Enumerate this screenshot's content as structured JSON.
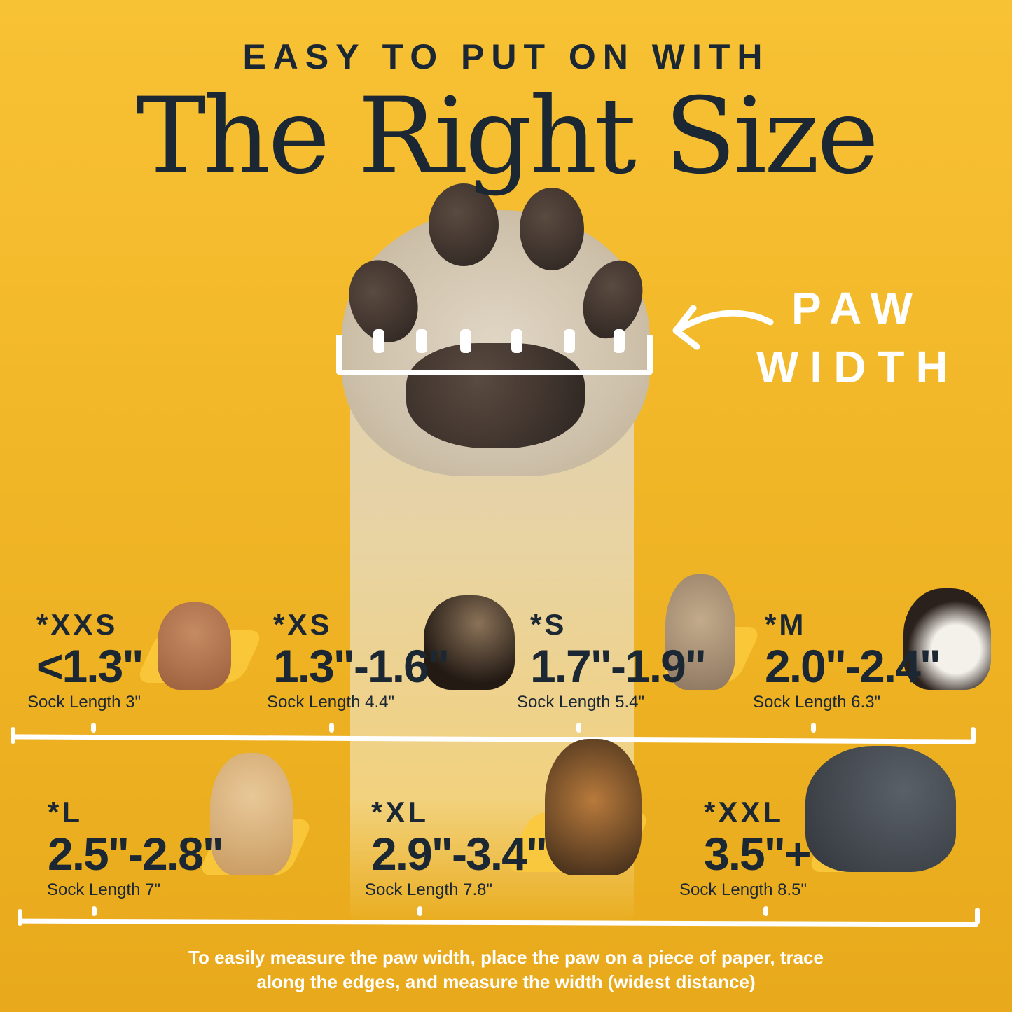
{
  "header": {
    "subtitle": "EASY TO PUT ON WITH",
    "title": "The Right Size"
  },
  "callout": {
    "line1": "PAW",
    "line2": "WIDTH",
    "icon": "curved-arrow-left-icon"
  },
  "sizes": [
    {
      "size": "*XXS",
      "range": "<1.3\"",
      "sock": "Sock Length 3\"",
      "dog": "chihuahua"
    },
    {
      "size": "*XS",
      "range": "1.3\"-1.6\"",
      "sock": "Sock Length 4.4\"",
      "dog": "yorkshire-terrier"
    },
    {
      "size": "*S",
      "range": "1.7\"-1.9\"",
      "sock": "Sock Length 5.4\"",
      "dog": "french-bulldog"
    },
    {
      "size": "*M",
      "range": "2.0\"-2.4\"",
      "sock": "Sock Length 6.3\"",
      "dog": "bernese-mountain-dog"
    },
    {
      "size": "*L",
      "range": "2.5\"-2.8\"",
      "sock": "Sock Length 7\"",
      "dog": "golden-retriever"
    },
    {
      "size": "*XL",
      "range": "2.9\"-3.4\"",
      "sock": "Sock Length 7.8\"",
      "dog": "german-shepherd"
    },
    {
      "size": "*XXL",
      "range": "3.5\"+",
      "sock": "Sock Length 8.5\"",
      "dog": "great-dane"
    }
  ],
  "footer": {
    "line1": "To easily measure the paw width, place the paw on a piece of paper, trace",
    "line2": "along the edges, and measure the width (widest distance)"
  },
  "colors": {
    "background": "#f0b526",
    "text": "#1b2733",
    "accent": "#ffffff"
  }
}
